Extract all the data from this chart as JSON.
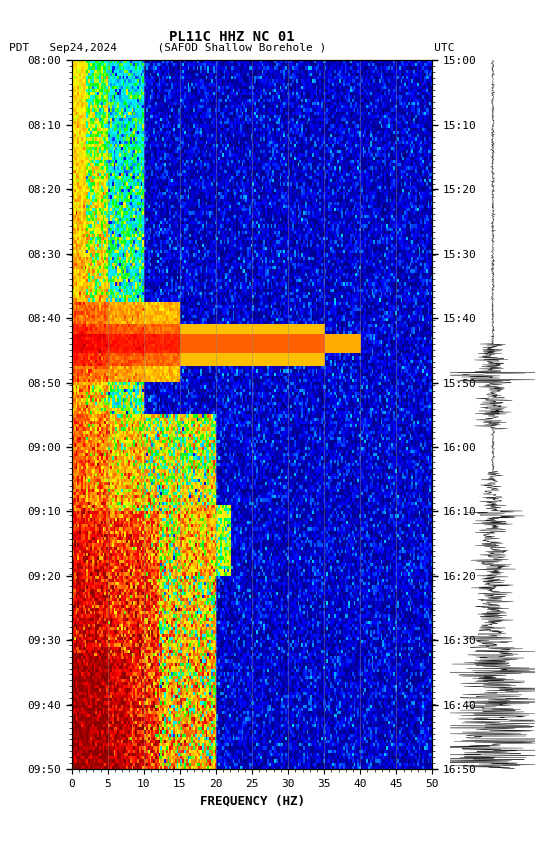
{
  "title_line1": "PL11C HHZ NC 01",
  "title_line2": "PDT   Sep24,2024      (SAFOD Shallow Borehole )                UTC",
  "xlabel": "FREQUENCY (HZ)",
  "freq_min": 0,
  "freq_max": 50,
  "freq_ticks": [
    0,
    5,
    10,
    15,
    20,
    25,
    30,
    35,
    40,
    45,
    50
  ],
  "time_start_pdt": "08:00",
  "time_end_pdt": "09:50",
  "time_start_utc": "15:00",
  "time_end_utc": "16:50",
  "pdt_ticks": [
    "08:00",
    "08:10",
    "08:20",
    "08:30",
    "08:40",
    "08:50",
    "09:00",
    "09:10",
    "09:20",
    "09:30",
    "09:40",
    "09:50"
  ],
  "utc_ticks": [
    "15:00",
    "15:10",
    "15:20",
    "15:30",
    "15:40",
    "15:50",
    "16:00",
    "16:10",
    "16:20",
    "16:30",
    "16:40",
    "16:50"
  ],
  "fig_width": 5.52,
  "fig_height": 8.64,
  "bg_color": "#ffffff",
  "spectrogram_vlines_freq": [
    5,
    10,
    15,
    20,
    25,
    30,
    35,
    40,
    45
  ],
  "vline_color": "#888888",
  "font_family": "monospace"
}
